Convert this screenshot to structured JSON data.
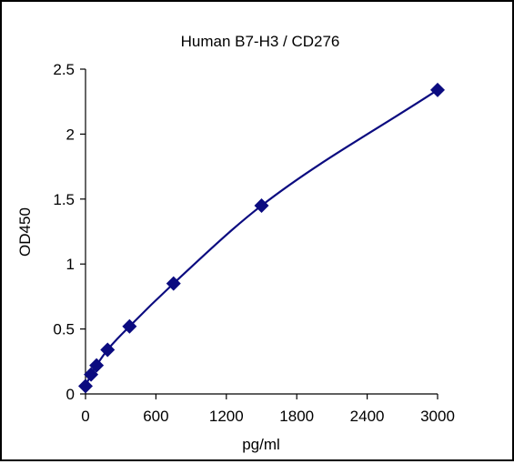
{
  "chart_data": {
    "type": "scatter",
    "title": "Human B7-H3 / CD276",
    "xlabel": "pg/ml",
    "ylabel": "OD450",
    "xlim": [
      0,
      3000
    ],
    "ylim": [
      0,
      2.5
    ],
    "xticks": [
      0,
      600,
      1200,
      1800,
      2400,
      3000
    ],
    "yticks": [
      0,
      0.5,
      1,
      1.5,
      2,
      2.5
    ],
    "ytick_labels": [
      "0",
      "0.5",
      "1",
      "1.5",
      "2",
      "2.5"
    ],
    "grid": false,
    "series": [
      {
        "marker": "diamond",
        "color": "#0b0b80",
        "x": [
          0,
          47,
          94,
          188,
          375,
          750,
          1500,
          3000
        ],
        "y": [
          0.06,
          0.15,
          0.22,
          0.34,
          0.52,
          0.85,
          1.45,
          2.34
        ]
      }
    ],
    "fit_curve": {
      "color": "#0b0b80",
      "x": [
        0,
        47,
        94,
        188,
        375,
        750,
        1500,
        3000
      ],
      "y": [
        0.06,
        0.15,
        0.22,
        0.34,
        0.52,
        0.85,
        1.45,
        2.34
      ]
    }
  }
}
